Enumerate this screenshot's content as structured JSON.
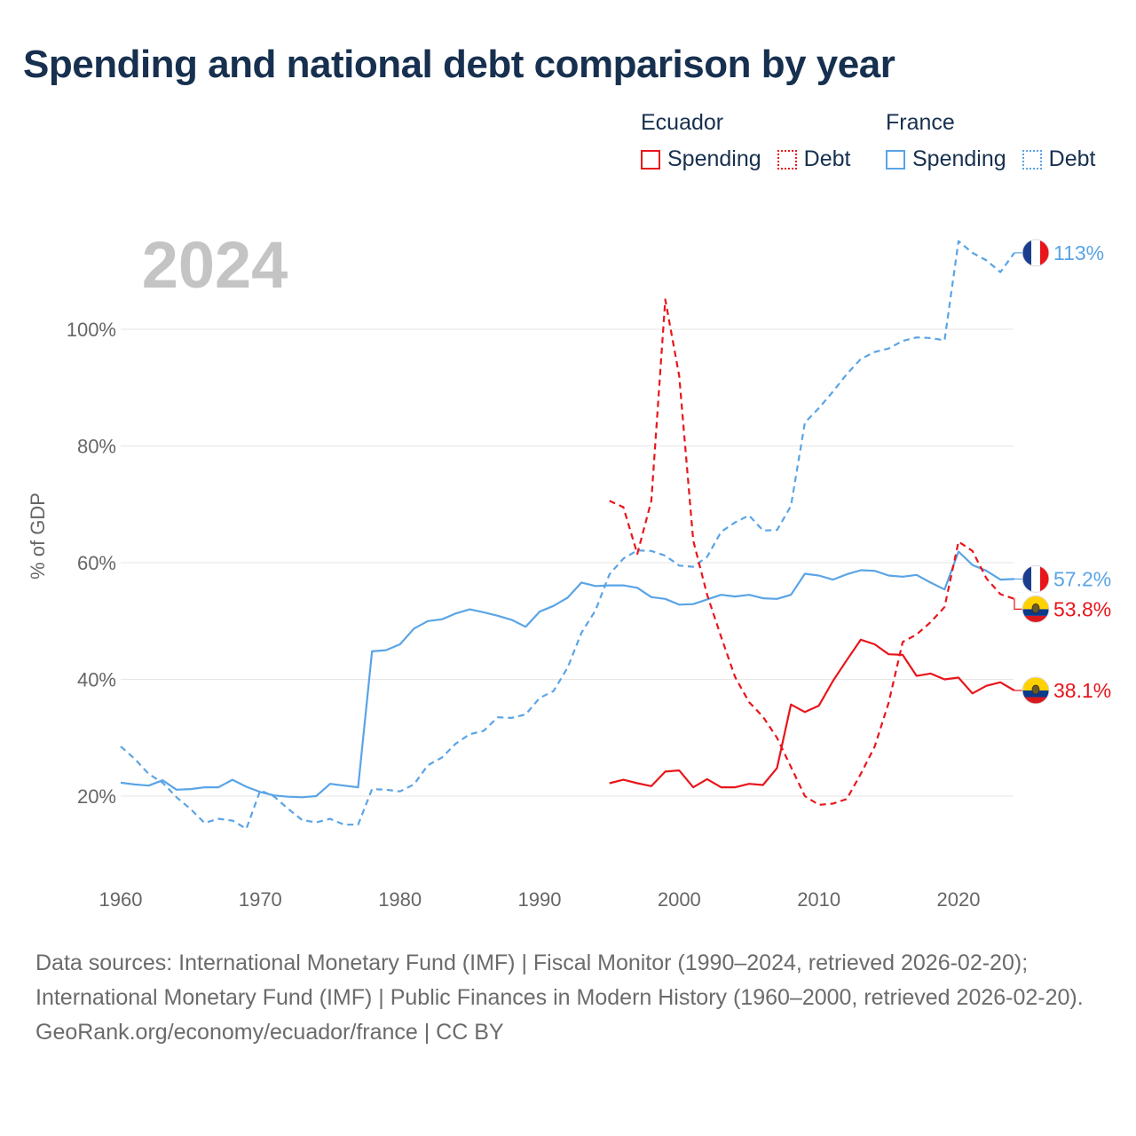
{
  "title": "Spending and national debt comparison by year",
  "legend": {
    "groups": [
      {
        "country": "Ecuador",
        "color": "#e8151b",
        "items": [
          {
            "label": "Spending",
            "style": "solid"
          },
          {
            "label": "Debt",
            "style": "dotted"
          }
        ]
      },
      {
        "country": "France",
        "color": "#5aa4e6",
        "items": [
          {
            "label": "Spending",
            "style": "solid"
          },
          {
            "label": "Debt",
            "style": "dotted"
          }
        ]
      }
    ]
  },
  "chart_data": {
    "type": "line",
    "year_label": "2024",
    "ylabel": "% of GDP",
    "xlabel": "",
    "xlim": [
      1960,
      2024
    ],
    "ylim": [
      10,
      120
    ],
    "x_ticks": [
      1960,
      1970,
      1980,
      1990,
      2000,
      2010,
      2020
    ],
    "y_ticks": [
      {
        "value": 20,
        "label": "20%"
      },
      {
        "value": 40,
        "label": "40%"
      },
      {
        "value": 60,
        "label": "60%"
      },
      {
        "value": 80,
        "label": "80%"
      },
      {
        "value": 100,
        "label": "100%"
      }
    ],
    "grid": true,
    "series": [
      {
        "name": "France Debt",
        "country": "France",
        "color": "#5aa4e6",
        "dash": "dashed",
        "end_label": "113%",
        "flag": "france-flag",
        "points": [
          [
            1960,
            28.5
          ],
          [
            1961,
            26.4
          ],
          [
            1962,
            23.8
          ],
          [
            1963,
            22.3
          ],
          [
            1964,
            19.8
          ],
          [
            1965,
            17.8
          ],
          [
            1966,
            15.4
          ],
          [
            1967,
            16.1
          ],
          [
            1968,
            15.8
          ],
          [
            1969,
            14.4
          ],
          [
            1970,
            21.0
          ],
          [
            1971,
            19.9
          ],
          [
            1972,
            17.8
          ],
          [
            1973,
            15.9
          ],
          [
            1974,
            15.5
          ],
          [
            1975,
            16.1
          ],
          [
            1976,
            15.1
          ],
          [
            1977,
            15.1
          ],
          [
            1978,
            21.2
          ],
          [
            1979,
            21.1
          ],
          [
            1980,
            20.8
          ],
          [
            1981,
            22.0
          ],
          [
            1982,
            25.3
          ],
          [
            1983,
            26.6
          ],
          [
            1984,
            29.0
          ],
          [
            1985,
            30.6
          ],
          [
            1986,
            31.2
          ],
          [
            1987,
            33.5
          ],
          [
            1988,
            33.4
          ],
          [
            1989,
            34.0
          ],
          [
            1990,
            36.8
          ],
          [
            1991,
            38.0
          ],
          [
            1992,
            42.0
          ],
          [
            1993,
            48.0
          ],
          [
            1994,
            51.8
          ],
          [
            1995,
            58.0
          ],
          [
            1996,
            60.7
          ],
          [
            1997,
            62.1
          ],
          [
            1998,
            62.0
          ],
          [
            1999,
            61.2
          ],
          [
            2000,
            59.5
          ],
          [
            2001,
            59.3
          ],
          [
            2002,
            61.0
          ],
          [
            2003,
            65.3
          ],
          [
            2004,
            66.9
          ],
          [
            2005,
            68.1
          ],
          [
            2006,
            65.5
          ],
          [
            2007,
            65.6
          ],
          [
            2008,
            69.7
          ],
          [
            2009,
            84.0
          ],
          [
            2010,
            86.5
          ],
          [
            2011,
            89.3
          ],
          [
            2012,
            92.3
          ],
          [
            2013,
            94.9
          ],
          [
            2014,
            96.1
          ],
          [
            2015,
            96.7
          ],
          [
            2016,
            98.0
          ],
          [
            2017,
            98.6
          ],
          [
            2018,
            98.5
          ],
          [
            2019,
            98.1
          ],
          [
            2020,
            115.1
          ],
          [
            2021,
            113.1
          ],
          [
            2022,
            111.8
          ],
          [
            2023,
            109.8
          ],
          [
            2024,
            113.1
          ]
        ]
      },
      {
        "name": "France Spending",
        "country": "France",
        "color": "#5aa4e6",
        "dash": "solid",
        "end_label": "57.2%",
        "flag": "france-flag",
        "points": [
          [
            1960,
            22.3
          ],
          [
            1961,
            22.0
          ],
          [
            1962,
            21.8
          ],
          [
            1963,
            22.7
          ],
          [
            1964,
            21.1
          ],
          [
            1965,
            21.2
          ],
          [
            1966,
            21.5
          ],
          [
            1967,
            21.5
          ],
          [
            1968,
            22.8
          ],
          [
            1969,
            21.6
          ],
          [
            1970,
            20.7
          ],
          [
            1971,
            20.1
          ],
          [
            1972,
            19.9
          ],
          [
            1973,
            19.8
          ],
          [
            1974,
            20.0
          ],
          [
            1975,
            22.1
          ],
          [
            1976,
            21.8
          ],
          [
            1977,
            21.5
          ],
          [
            1978,
            44.8
          ],
          [
            1979,
            45.0
          ],
          [
            1980,
            46.0
          ],
          [
            1981,
            48.7
          ],
          [
            1982,
            50.0
          ],
          [
            1983,
            50.3
          ],
          [
            1984,
            51.3
          ],
          [
            1985,
            52.0
          ],
          [
            1986,
            51.5
          ],
          [
            1987,
            50.9
          ],
          [
            1988,
            50.2
          ],
          [
            1989,
            49.0
          ],
          [
            1990,
            51.6
          ],
          [
            1991,
            52.6
          ],
          [
            1992,
            54.0
          ],
          [
            1993,
            56.6
          ],
          [
            1994,
            56.0
          ],
          [
            1995,
            56.1
          ],
          [
            1996,
            56.1
          ],
          [
            1997,
            55.7
          ],
          [
            1998,
            54.1
          ],
          [
            1999,
            53.8
          ],
          [
            2000,
            52.8
          ],
          [
            2001,
            52.9
          ],
          [
            2002,
            53.7
          ],
          [
            2003,
            54.5
          ],
          [
            2004,
            54.2
          ],
          [
            2005,
            54.5
          ],
          [
            2006,
            53.9
          ],
          [
            2007,
            53.8
          ],
          [
            2008,
            54.5
          ],
          [
            2009,
            58.1
          ],
          [
            2010,
            57.8
          ],
          [
            2011,
            57.1
          ],
          [
            2012,
            58.0
          ],
          [
            2013,
            58.7
          ],
          [
            2014,
            58.6
          ],
          [
            2015,
            57.8
          ],
          [
            2016,
            57.6
          ],
          [
            2017,
            57.9
          ],
          [
            2018,
            56.6
          ],
          [
            2019,
            55.4
          ],
          [
            2020,
            61.9
          ],
          [
            2021,
            59.6
          ],
          [
            2022,
            58.6
          ],
          [
            2023,
            57.1
          ],
          [
            2024,
            57.2
          ]
        ]
      },
      {
        "name": "Ecuador Debt",
        "country": "Ecuador",
        "color": "#e8151b",
        "dash": "dashed",
        "end_label": "53.8%",
        "flag": "ecuador-flag",
        "points": [
          [
            1995,
            70.6
          ],
          [
            1996,
            69.5
          ],
          [
            1997,
            61.5
          ],
          [
            1998,
            70.6
          ],
          [
            1999,
            105.1
          ],
          [
            2000,
            92.0
          ],
          [
            2001,
            63.8
          ],
          [
            2002,
            54.5
          ],
          [
            2003,
            47.3
          ],
          [
            2004,
            40.4
          ],
          [
            2005,
            36.1
          ],
          [
            2006,
            33.6
          ],
          [
            2007,
            30.0
          ],
          [
            2008,
            25.0
          ],
          [
            2009,
            20.0
          ],
          [
            2010,
            18.5
          ],
          [
            2011,
            18.7
          ],
          [
            2012,
            19.5
          ],
          [
            2013,
            23.8
          ],
          [
            2014,
            28.5
          ],
          [
            2015,
            36.0
          ],
          [
            2016,
            46.4
          ],
          [
            2017,
            47.7
          ],
          [
            2018,
            49.8
          ],
          [
            2019,
            52.4
          ],
          [
            2020,
            63.6
          ],
          [
            2021,
            62.0
          ],
          [
            2022,
            57.3
          ],
          [
            2023,
            54.6
          ],
          [
            2024,
            53.8
          ]
        ]
      },
      {
        "name": "Ecuador Spending",
        "country": "Ecuador",
        "color": "#e8151b",
        "dash": "solid",
        "end_label": "38.1%",
        "flag": "ecuador-flag",
        "points": [
          [
            1995,
            22.2
          ],
          [
            1996,
            22.8
          ],
          [
            1997,
            22.2
          ],
          [
            1998,
            21.7
          ],
          [
            1999,
            24.2
          ],
          [
            2000,
            24.4
          ],
          [
            2001,
            21.5
          ],
          [
            2002,
            22.9
          ],
          [
            2003,
            21.5
          ],
          [
            2004,
            21.5
          ],
          [
            2005,
            22.1
          ],
          [
            2006,
            21.9
          ],
          [
            2007,
            24.8
          ],
          [
            2008,
            35.7
          ],
          [
            2009,
            34.4
          ],
          [
            2010,
            35.5
          ],
          [
            2011,
            39.7
          ],
          [
            2012,
            43.3
          ],
          [
            2013,
            46.8
          ],
          [
            2014,
            46.0
          ],
          [
            2015,
            44.3
          ],
          [
            2016,
            44.2
          ],
          [
            2017,
            40.6
          ],
          [
            2018,
            41.0
          ],
          [
            2019,
            40.0
          ],
          [
            2020,
            40.3
          ],
          [
            2021,
            37.6
          ],
          [
            2022,
            38.9
          ],
          [
            2023,
            39.5
          ],
          [
            2024,
            38.1
          ]
        ]
      }
    ]
  },
  "footer": {
    "sources": "Data sources: International Monetary Fund (IMF) | Fiscal Monitor (1990–2024, retrieved 2026-02-20); International Monetary Fund (IMF) | Public Finances in Modern History (1960–2000, retrieved 2026-02-20).",
    "credit": "GeoRank.org/economy/ecuador/france | CC BY"
  }
}
